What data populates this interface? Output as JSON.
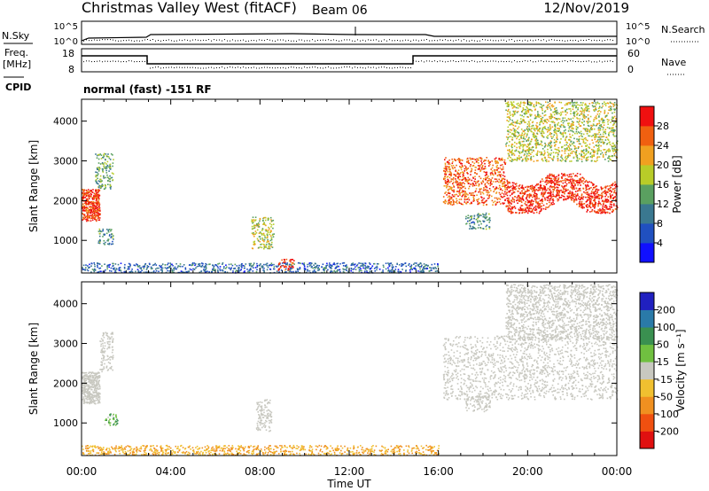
{
  "header": {
    "title": "Christmas Valley West (fitACF)",
    "beam": "Beam 06",
    "date": "12/Nov/2019"
  },
  "top_panels": {
    "nsky_label": "N.Sky",
    "nsearch_label": "N.Search",
    "freq_label_line1": "Freq.",
    "freq_label_line2": "[MHz]",
    "nave_label": "Nave",
    "cpid_label": "CPID",
    "cpid_text": "normal (fast) -151 RF",
    "noise_ticks_left": [
      "10^5",
      "10^0"
    ],
    "noise_ticks_right": [
      "10^5",
      "10^0"
    ],
    "freq_ticks": [
      "18",
      "8"
    ],
    "nave_ticks": [
      "60",
      "0"
    ]
  },
  "axes": {
    "xlabel": "Time UT",
    "ylabel": "Slant Range [km]",
    "x_ticks": [
      "00:00",
      "04:00",
      "08:00",
      "12:00",
      "16:00",
      "20:00",
      "00:00"
    ],
    "y_ticks": [
      "1000",
      "2000",
      "3000",
      "4000"
    ]
  },
  "power_colorbar": {
    "label": "Power [dB]",
    "ticks": [
      "4",
      "8",
      "12",
      "16",
      "20",
      "24",
      "28"
    ],
    "colors": [
      "#1010ff",
      "#2050c0",
      "#3a7890",
      "#5aa060",
      "#b8cc28",
      "#f0a020",
      "#f06010",
      "#f01010"
    ]
  },
  "velocity_colorbar": {
    "label": "Velocity [m s⁻¹]",
    "ticks": [
      "200",
      "100",
      "50",
      "15",
      "-15",
      "-50",
      "-100",
      "-200"
    ],
    "colors": [
      "#2020c0",
      "#2a7aa8",
      "#3a9050",
      "#70c040",
      "#c8c8c0",
      "#f0c030",
      "#f09020",
      "#f05010",
      "#e01010"
    ]
  },
  "chart_data": [
    {
      "type": "heatmap",
      "name": "power",
      "x_range_hours": [
        0,
        24
      ],
      "ylim": [
        180,
        4550
      ],
      "clabel": "Power [dB]",
      "crange": [
        0,
        32
      ],
      "scatter_regions": [
        {
          "t": [
            0.0,
            0.8
          ],
          "r": [
            1500,
            2300
          ],
          "value": 28,
          "note": "dense"
        },
        {
          "t": [
            0.6,
            1.4
          ],
          "r": [
            2300,
            3200
          ],
          "value": 14
        },
        {
          "t": [
            0.7,
            1.4
          ],
          "r": [
            900,
            1300
          ],
          "value": 12
        },
        {
          "t": [
            7.6,
            8.6
          ],
          "r": [
            800,
            1600
          ],
          "value": 18
        },
        {
          "t": [
            0.0,
            16.0
          ],
          "r": [
            200,
            450
          ],
          "value": 8
        },
        {
          "t": [
            8.8,
            9.5
          ],
          "r": [
            250,
            550
          ],
          "value": 28
        },
        {
          "t": [
            16.2,
            19.0
          ],
          "r": [
            1900,
            3100
          ],
          "value": 26
        },
        {
          "t": [
            19.0,
            24.0
          ],
          "r": [
            1700,
            2700
          ],
          "value": 29,
          "note": "wavy band"
        },
        {
          "t": [
            17.2,
            18.3
          ],
          "r": [
            1300,
            1700
          ],
          "value": 12
        },
        {
          "t": [
            19.0,
            24.0
          ],
          "r": [
            3000,
            4500
          ],
          "value": 18,
          "note": "sparse"
        }
      ]
    },
    {
      "type": "heatmap",
      "name": "velocity",
      "x_range_hours": [
        0,
        24
      ],
      "ylim": [
        180,
        4550
      ],
      "clabel": "Velocity [m s⁻¹]",
      "crange": [
        -250,
        250
      ],
      "scatter_regions": [
        {
          "t": [
            0.0,
            0.8
          ],
          "r": [
            1500,
            2300
          ],
          "value": 0,
          "note": "ground scatter"
        },
        {
          "t": [
            0.8,
            1.4
          ],
          "r": [
            2300,
            3300
          ],
          "value": 0
        },
        {
          "t": [
            1.0,
            1.6
          ],
          "r": [
            950,
            1250
          ],
          "value": 40
        },
        {
          "t": [
            7.8,
            8.5
          ],
          "r": [
            800,
            1600
          ],
          "value": 0
        },
        {
          "t": [
            0.0,
            16.0
          ],
          "r": [
            200,
            450
          ],
          "value": -50
        },
        {
          "t": [
            16.2,
            24.0
          ],
          "r": [
            1600,
            3200
          ],
          "value": 0,
          "note": "ground scatter"
        },
        {
          "t": [
            17.2,
            18.3
          ],
          "r": [
            1300,
            1700
          ],
          "value": 0
        },
        {
          "t": [
            19.0,
            24.0
          ],
          "r": [
            3100,
            4500
          ],
          "value": 0
        }
      ]
    }
  ]
}
